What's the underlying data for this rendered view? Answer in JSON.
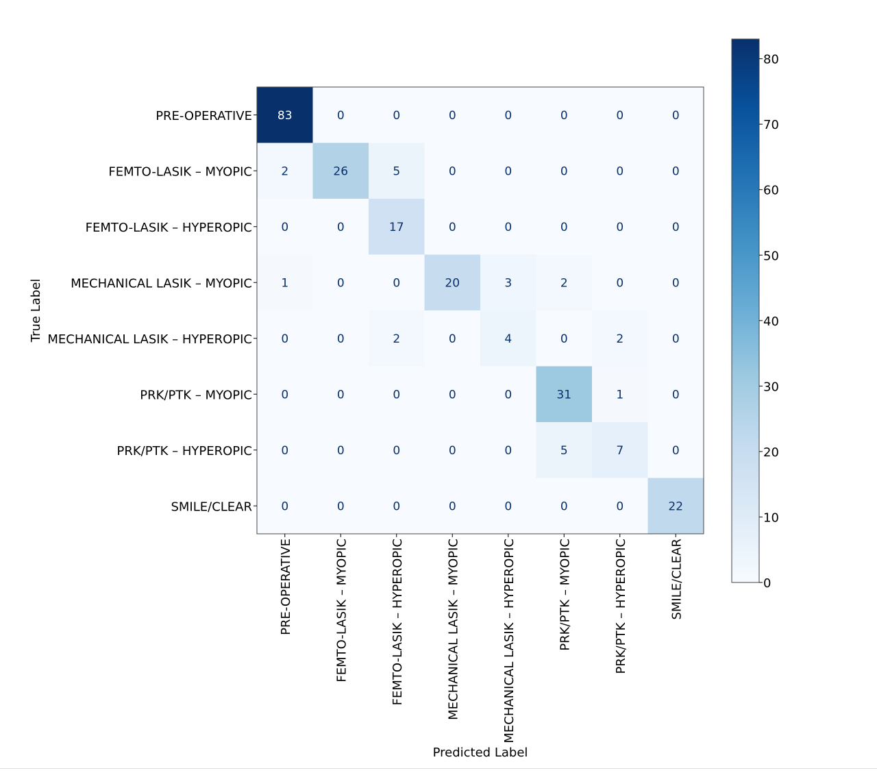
{
  "chart_data": {
    "type": "heatmap",
    "title": "",
    "xlabel": "Predicted Label",
    "ylabel": "True Label",
    "categories": [
      "PRE-OPERATIVE",
      "FEMTO-LASIK – MYOPIC",
      "FEMTO-LASIK – HYPEROPIC",
      "MECHANICAL LASIK – MYOPIC",
      "MECHANICAL LASIK – HYPEROPIC",
      "PRK/PTK – MYOPIC",
      "PRK/PTK – HYPEROPIC",
      "SMILE/CLEAR"
    ],
    "matrix": [
      [
        83,
        0,
        0,
        0,
        0,
        0,
        0,
        0
      ],
      [
        2,
        26,
        5,
        0,
        0,
        0,
        0,
        0
      ],
      [
        0,
        0,
        17,
        0,
        0,
        0,
        0,
        0
      ],
      [
        1,
        0,
        0,
        20,
        3,
        2,
        0,
        0
      ],
      [
        0,
        0,
        2,
        0,
        4,
        0,
        2,
        0
      ],
      [
        0,
        0,
        0,
        0,
        0,
        31,
        1,
        0
      ],
      [
        0,
        0,
        0,
        0,
        0,
        5,
        7,
        0
      ],
      [
        0,
        0,
        0,
        0,
        0,
        0,
        0,
        22
      ]
    ],
    "colormap": "Blues",
    "colorbar": {
      "ticks": [
        0,
        10,
        20,
        30,
        40,
        50,
        60,
        70,
        80
      ],
      "range": [
        0,
        83
      ]
    },
    "cell_text_dark": "#08306b",
    "cell_text_light": "#ffffff",
    "grid": false,
    "legend": "colorbar-right"
  }
}
